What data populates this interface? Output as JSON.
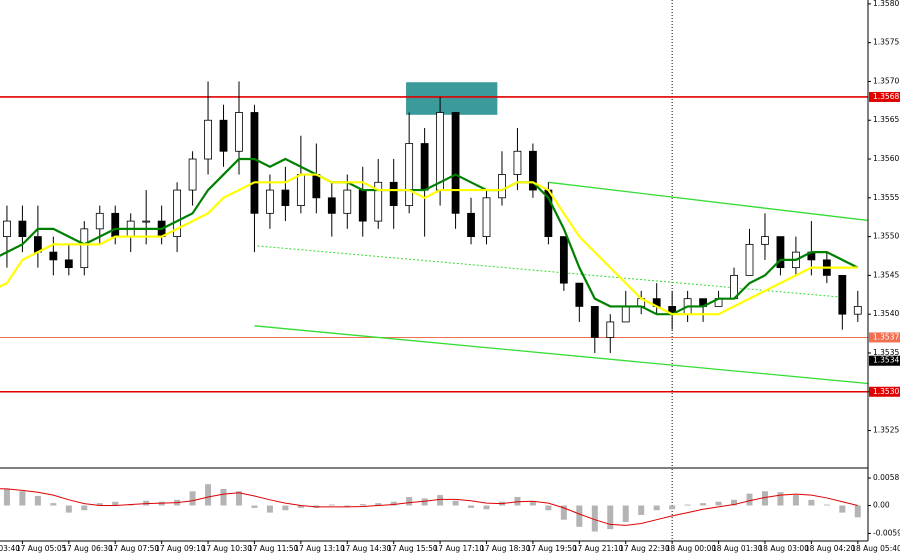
{
  "chart_data": [
    {
      "type": "candlestick",
      "categories": [
        "03:40",
        null,
        null,
        "17 Aug 05:05",
        null,
        null,
        "17 Aug 06:30",
        null,
        null,
        "17 Aug 07:50",
        null,
        null,
        "17 Aug 09:10",
        null,
        null,
        "17 Aug 10:30",
        null,
        null,
        "17 Aug 11:50",
        null,
        null,
        "17 Aug 13:10",
        null,
        null,
        "17 Aug 14:30",
        null,
        null,
        "17 Aug 15:50",
        null,
        null,
        "17 Aug 17:10",
        null,
        null,
        "17 Aug 18:30",
        null,
        null,
        "17 Aug 19:50",
        null,
        null,
        "17 Aug 21:10",
        null,
        null,
        "17 Aug 22:30",
        null,
        null,
        "18 Aug 00:00",
        null,
        null,
        "18 Aug 01:30",
        null,
        null,
        "18 Aug 03:00",
        null,
        null,
        "18 Aug 04:20",
        null,
        null,
        "18 Aug 05:40"
      ],
      "open": [
        1.3549,
        1.355,
        1.355,
        1.3552,
        1.355,
        1.3548,
        1.3547,
        1.3546,
        1.3551,
        1.3553,
        1.355,
        1.3552,
        1.3552,
        1.355,
        1.3556,
        1.356,
        1.3565,
        1.3561,
        1.3566,
        1.3553,
        1.3556,
        1.3554,
        1.3558,
        1.3555,
        1.3553,
        1.3556,
        1.3552,
        1.3557,
        1.3554,
        1.3562,
        1.3556,
        1.3566,
        1.3553,
        1.355,
        1.3555,
        1.3558,
        1.3561,
        1.3556,
        1.355,
        1.3544,
        1.3541,
        1.3537,
        1.3539,
        1.3541,
        1.3542,
        1.3541,
        1.354,
        1.3542,
        1.3541,
        1.3542,
        1.3545,
        1.3549,
        1.355,
        1.3546,
        1.3548,
        1.3547,
        1.3545,
        1.354
      ],
      "high": [
        1.3552,
        1.3553,
        1.3554,
        1.3554,
        1.3554,
        1.355,
        1.3549,
        1.3552,
        1.3554,
        1.3554,
        1.3553,
        1.3556,
        1.3554,
        1.3557,
        1.3561,
        1.357,
        1.3567,
        1.357,
        1.3567,
        1.3558,
        1.3559,
        1.3563,
        1.3562,
        1.3557,
        1.3558,
        1.3559,
        1.356,
        1.356,
        1.3566,
        1.3564,
        1.3568,
        1.3566,
        1.3555,
        1.3556,
        1.3561,
        1.3564,
        1.3562,
        1.3557,
        1.355,
        1.3544,
        1.3541,
        1.354,
        1.3543,
        1.3543,
        1.3544,
        1.3543,
        1.3543,
        1.3542,
        1.3543,
        1.3546,
        1.3551,
        1.3553,
        1.355,
        1.355,
        1.3552,
        1.3548,
        1.3545,
        1.3543
      ],
      "low": [
        1.3547,
        1.3548,
        1.3546,
        1.3548,
        1.3546,
        1.3545,
        1.3545,
        1.3545,
        1.3549,
        1.3549,
        1.3548,
        1.3549,
        1.3549,
        1.3548,
        1.3554,
        1.3558,
        1.3559,
        1.3558,
        1.3548,
        1.3551,
        1.3552,
        1.3553,
        1.3553,
        1.355,
        1.3551,
        1.355,
        1.3551,
        1.3551,
        1.3553,
        1.355,
        1.3554,
        1.3551,
        1.3549,
        1.3549,
        1.3554,
        1.3556,
        1.3555,
        1.3549,
        1.3543,
        1.3539,
        1.3535,
        1.3535,
        1.3539,
        1.354,
        1.354,
        1.3538,
        1.3539,
        1.3539,
        1.3541,
        1.3542,
        1.3545,
        1.3547,
        1.3545,
        1.3545,
        1.3545,
        1.3544,
        1.3538,
        1.3539
      ],
      "close": [
        1.355,
        1.355,
        1.3552,
        1.355,
        1.3548,
        1.3547,
        1.3546,
        1.3551,
        1.3553,
        1.355,
        1.3552,
        1.3552,
        1.355,
        1.3556,
        1.356,
        1.3565,
        1.3561,
        1.3566,
        1.3553,
        1.3556,
        1.3554,
        1.3558,
        1.3555,
        1.3553,
        1.3556,
        1.3552,
        1.3557,
        1.3554,
        1.3562,
        1.3556,
        1.3566,
        1.3553,
        1.355,
        1.3555,
        1.3558,
        1.3561,
        1.3556,
        1.355,
        1.3544,
        1.3541,
        1.3537,
        1.3539,
        1.3541,
        1.3542,
        1.3541,
        1.354,
        1.3542,
        1.3541,
        1.3542,
        1.3545,
        1.3549,
        1.355,
        1.3546,
        1.3548,
        1.3547,
        1.3545,
        1.354,
        1.3541
      ],
      "series": [
        {
          "color": "#008000",
          "values": [
            1.3547,
            1.3547,
            1.3548,
            1.3549,
            1.3551,
            1.3551,
            1.355,
            1.3549,
            1.355,
            1.3551,
            1.3551,
            1.3551,
            1.3551,
            1.3552,
            1.3553,
            1.3556,
            1.3558,
            1.356,
            1.356,
            1.3559,
            1.356,
            1.3559,
            1.3558,
            1.3557,
            1.3557,
            1.3556,
            1.3556,
            1.3556,
            1.3556,
            1.3556,
            1.3557,
            1.3558,
            1.3557,
            1.3556,
            1.3556,
            1.3557,
            1.3557,
            1.3555,
            1.3551,
            1.3546,
            1.3542,
            1.3541,
            1.3541,
            1.3541,
            1.354,
            1.354,
            1.3541,
            1.3541,
            1.3542,
            1.3542,
            1.3544,
            1.3545,
            1.3547,
            1.3547,
            1.3548,
            1.3548,
            1.3547,
            1.3546
          ]
        },
        {
          "color": "#ffff00",
          "values": [
            1.3542,
            1.3543,
            1.3544,
            1.3547,
            1.3548,
            1.3549,
            1.3549,
            1.3549,
            1.3549,
            1.355,
            1.355,
            1.355,
            1.355,
            1.3551,
            1.3552,
            1.3553,
            1.3555,
            1.3556,
            1.3557,
            1.3557,
            1.3557,
            1.3558,
            1.3558,
            1.3557,
            1.3557,
            1.3557,
            1.3556,
            1.3556,
            1.3556,
            1.3555,
            1.3556,
            1.3556,
            1.3556,
            1.3556,
            1.3556,
            1.3557,
            1.3557,
            1.3556,
            1.3553,
            1.355,
            1.3548,
            1.3546,
            1.3544,
            1.3542,
            1.3541,
            1.354,
            1.354,
            1.354,
            1.354,
            1.3541,
            1.3542,
            1.3543,
            1.3544,
            1.3545,
            1.3546,
            1.3546,
            1.3546,
            1.3546
          ]
        }
      ],
      "ylim": [
        1.35203,
        1.35805
      ],
      "yticks": [
        {
          "value": 1.358,
          "label": "1.3580"
        },
        1.3575,
        {
          "value": 1.357,
          "label": "1.3570"
        },
        1.3565,
        {
          "value": 1.356,
          "label": "1.3560"
        },
        1.3555,
        {
          "value": 1.355,
          "label": "1.3550"
        },
        1.3545,
        {
          "value": 1.354,
          "label": "1.3540"
        },
        1.3535,
        {
          "value": 1.353,
          "label": "1.3530"
        },
        1.3525
      ],
      "levels": [
        {
          "value": 1.3568,
          "label": "1.3568",
          "color": "#e00000",
          "line": true
        },
        {
          "value": 1.3537,
          "label": "1.3537",
          "color": "#f07050",
          "line": true
        },
        {
          "value": 1.3534,
          "label": "1.3534",
          "color": "#000000",
          "line": false
        },
        {
          "value": 1.353,
          "label": "1.3530",
          "color": "#e00000",
          "line": true
        }
      ],
      "trendlines": [
        {
          "x": [
            37,
            58
          ],
          "y": [
            1.3557,
            1.3552
          ],
          "color": "#33dd33",
          "dashed": false
        },
        {
          "x": [
            18,
            58
          ],
          "y": [
            1.35385,
            1.3531
          ],
          "color": "#33dd33",
          "dashed": false
        },
        {
          "x": [
            18.2,
            55.9
          ],
          "y": [
            1.35488,
            1.35422
          ],
          "color": "#33dd33",
          "dashed": true
        }
      ],
      "zones": [
        {
          "x": [
            27.8,
            33.7
          ],
          "y": [
            1.35699,
            1.35657
          ],
          "color": "#3b9a9a"
        }
      ],
      "separators": [
        45
      ]
    },
    {
      "type": "macd",
      "values": [
        0.0038,
        0.0037,
        0.0035,
        0.003,
        0.002,
        0.0005,
        -0.0015,
        -0.001,
        0.0005,
        0.0008,
        0.0002,
        0.001,
        0.0008,
        0.0012,
        0.003,
        0.0045,
        0.0035,
        0.003,
        -0.0005,
        -0.0015,
        -0.001,
        -0.0005,
        -0.0005,
        0.0002,
        -0.0003,
        0.0003,
        0.0005,
        0.0008,
        0.0018,
        0.0015,
        0.0022,
        0.001,
        -0.0005,
        -0.0008,
        0.0008,
        0.0018,
        0.0008,
        -0.001,
        -0.003,
        -0.0045,
        -0.0055,
        -0.005,
        -0.0035,
        -0.002,
        -0.001,
        -0.0008,
        0.0002,
        0.0005,
        0.0008,
        0.0012,
        0.0025,
        0.003,
        0.0028,
        0.0022,
        0.0012,
        0.0002,
        -0.0015,
        -0.0025
      ],
      "color": "#b4b4b4",
      "signal": [
        0.0036,
        0.0036,
        0.0035,
        0.0032,
        0.0028,
        0.0022,
        0.0012,
        0.0004,
        0.0,
        0.0,
        0.0002,
        0.0004,
        0.0005,
        0.0006,
        0.001,
        0.0018,
        0.0024,
        0.0027,
        0.002,
        0.0012,
        0.0005,
        0.0,
        -0.0003,
        -0.0003,
        -0.0003,
        -0.0002,
        0.0,
        0.0002,
        0.0006,
        0.0009,
        0.0013,
        0.0013,
        0.001,
        0.0005,
        0.0004,
        0.0008,
        0.0009,
        0.0005,
        -0.0005,
        -0.0018,
        -0.003,
        -0.004,
        -0.0042,
        -0.0038,
        -0.003,
        -0.0022,
        -0.0015,
        -0.0008,
        -0.0003,
        0.0002,
        0.001,
        0.0017,
        0.0022,
        0.0024,
        0.0022,
        0.0016,
        0.0008,
        0.0
      ],
      "signal_color": "#e00000",
      "ylim": [
        -0.0075,
        0.0075
      ],
      "yticks": [
        0.0058,
        {
          "value": 0,
          "label": "0.00"
        },
        -0.0059
      ]
    }
  ]
}
